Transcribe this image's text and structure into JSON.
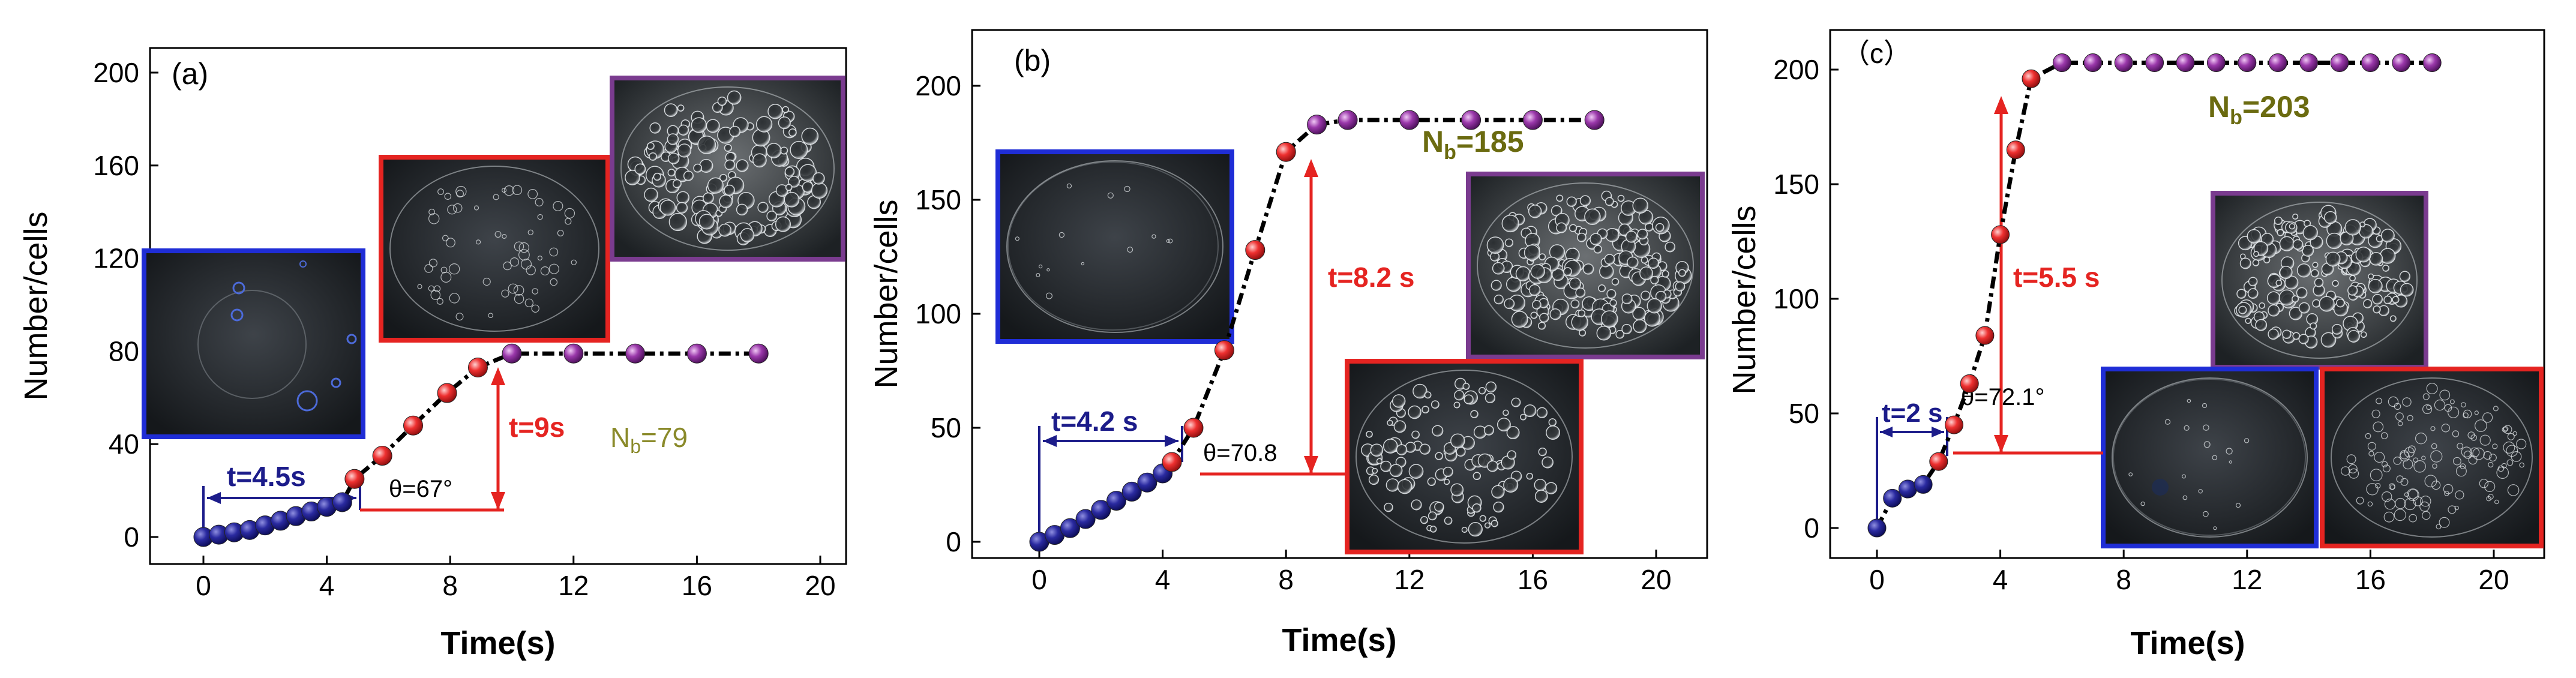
{
  "colors": {
    "blue_marker": "#1a1a8c",
    "red_marker": "#e52421",
    "purple_marker": "#8b2f9b",
    "blue_annotation": "#1c1c8a",
    "red_annotation": "#e52421",
    "green_text_a": "#8a8a2a",
    "green_text_bc": "#6b6b10",
    "frame_blue": "#1f2dd6",
    "frame_red": "#e52421",
    "frame_purple": "#7a3b8f"
  },
  "chart_data": [
    {
      "type": "scatter",
      "panel_label": "(a)",
      "xlabel": "Time(s)",
      "ylabel": "Number/cells",
      "xlim": [
        -2,
        20
      ],
      "ylim": [
        -10,
        210
      ],
      "xticks": [
        0,
        4,
        8,
        12,
        16,
        20
      ],
      "yticks": [
        0,
        40,
        80,
        120,
        160,
        200
      ],
      "series": [
        {
          "name": "",
          "color": "blue",
          "x": [
            0,
            0.5,
            1,
            1.5,
            2,
            2.5,
            3,
            3.5,
            4,
            4.5
          ],
          "y": [
            0,
            1,
            2,
            3,
            5,
            7,
            9,
            11,
            13,
            15
          ]
        },
        {
          "name": "",
          "color": "red",
          "x": [
            4.9,
            5.8,
            6.8,
            7.9,
            8.9
          ],
          "y": [
            25,
            35,
            48,
            62,
            73
          ]
        },
        {
          "name": "",
          "color": "purple",
          "x": [
            10,
            12,
            14,
            16,
            18
          ],
          "y": [
            79,
            79,
            79,
            79,
            79
          ]
        }
      ],
      "annotations": {
        "t_blue": "t=4.5s",
        "t_red": "t=9s",
        "theta": "θ=67°",
        "nb_main": "N",
        "nb_sub": "b",
        "nb_value": "=79"
      }
    },
    {
      "type": "scatter",
      "panel_label": "(b)",
      "xlabel": "Time(s)",
      "ylabel": "Number/cells",
      "xlim": [
        -2,
        20
      ],
      "ylim": [
        -10,
        210
      ],
      "xticks": [
        0,
        4,
        8,
        12,
        16,
        20
      ],
      "yticks": [
        0,
        50,
        100,
        150,
        200
      ],
      "series": [
        {
          "name": "",
          "color": "blue",
          "x": [
            0,
            0.5,
            1,
            1.5,
            2,
            2.5,
            3,
            3.5,
            4
          ],
          "y": [
            0,
            3,
            6,
            10,
            14,
            18,
            22,
            26,
            30
          ]
        },
        {
          "name": "",
          "color": "red",
          "x": [
            4.3,
            5,
            6,
            7,
            8
          ],
          "y": [
            35,
            50,
            84,
            128,
            171
          ]
        },
        {
          "name": "",
          "color": "purple",
          "x": [
            9,
            10,
            12,
            14,
            16,
            18
          ],
          "y": [
            183,
            185,
            185,
            185,
            185,
            185
          ]
        }
      ],
      "annotations": {
        "t_blue": "t=4.2 s",
        "t_red": "t=8.2 s",
        "theta": "θ=70.8",
        "nb_main": "N",
        "nb_sub": "b",
        "nb_value": "=185"
      }
    },
    {
      "type": "scatter",
      "panel_label": "（c）",
      "xlabel": "Time(s)",
      "ylabel": "Number/cells",
      "xlim": [
        -2,
        20
      ],
      "ylim": [
        -10,
        210
      ],
      "xticks": [
        0,
        4,
        8,
        12,
        16,
        20
      ],
      "yticks": [
        0,
        50,
        100,
        150,
        200
      ],
      "series": [
        {
          "name": "",
          "color": "blue",
          "x": [
            0,
            0.5,
            1,
            1.5
          ],
          "y": [
            0,
            13,
            17,
            19
          ]
        },
        {
          "name": "",
          "color": "red",
          "x": [
            2,
            2.5,
            3,
            3.5,
            4,
            4.5,
            5
          ],
          "y": [
            29,
            45,
            63,
            84,
            128,
            165,
            196
          ]
        },
        {
          "name": "",
          "color": "purple",
          "x": [
            6,
            7,
            8,
            9,
            10,
            11,
            12,
            13,
            14,
            15,
            16,
            17,
            18
          ],
          "y": [
            203,
            203,
            203,
            203,
            203,
            203,
            203,
            203,
            203,
            203,
            203,
            203,
            203
          ]
        }
      ],
      "annotations": {
        "t_blue": "t=2 s",
        "t_red": "t=5.5 s",
        "theta": "θ=72.1°",
        "nb_main": "N",
        "nb_sub": "b",
        "nb_value": "=203"
      }
    }
  ]
}
